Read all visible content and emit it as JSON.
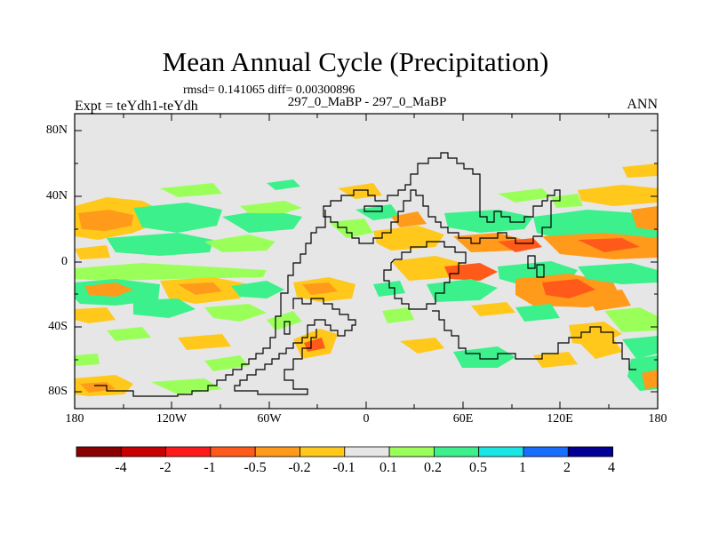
{
  "title": "Mean Annual Cycle (Precipitation)",
  "stats_text": "rmsd= 0.141065 diff= 0.00300896",
  "subtitle": "297_0_MaBP - 297_0_MaBP",
  "experiment": "Expt = teYdh1-teYdh",
  "season": "ANN",
  "y_ticks": [
    "80N",
    "40N",
    "0",
    "40S",
    "80S"
  ],
  "x_ticks": [
    "180",
    "120W",
    "60W",
    "0",
    "60E",
    "120E",
    "180"
  ],
  "colorbar": {
    "labels": [
      "-4",
      "-2",
      "-1",
      "-0.5",
      "-0.2",
      "-0.1",
      "0.1",
      "0.2",
      "0.5",
      "1",
      "2",
      "4"
    ],
    "colors": [
      "#8b0000",
      "#c80000",
      "#ff1a1a",
      "#ff5a1a",
      "#ff9a1a",
      "#ffc81a",
      "#e6e6e6",
      "#9bff5a",
      "#3cf08c",
      "#1ae6e6",
      "#1a6eff",
      "#000096"
    ]
  },
  "colors": {
    "background": "#e6e6e6",
    "land_outline": "#000000"
  }
}
